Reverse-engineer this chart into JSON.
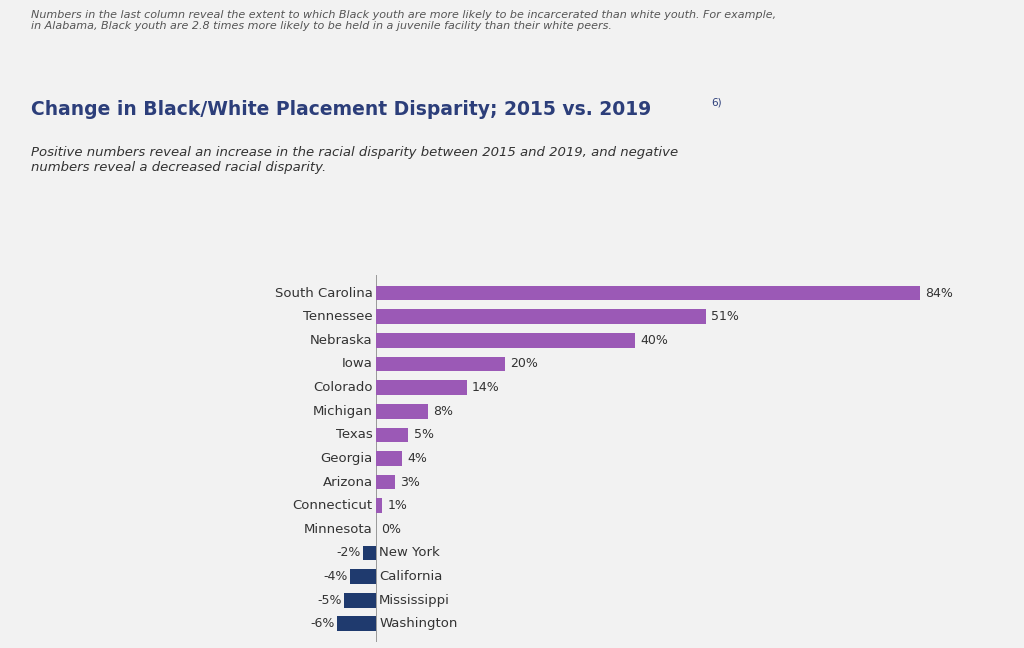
{
  "title": "Change in Black/White Placement Disparity; 2015 vs. 2019",
  "title_superscript": "6)",
  "subtitle": "Positive numbers reveal an increase in the racial disparity between 2015 and 2019, and negative\nnumbers reveal a decreased racial disparity.",
  "header_note": "Numbers in the last column reveal the extent to which Black youth are more likely to be incarcerated than white youth. For example,\nin Alabama, Black youth are 2.8 times more likely to be held in a juvenile facility than their white peers.",
  "categories": [
    "South Carolina",
    "Tennessee",
    "Nebraska",
    "Iowa",
    "Colorado",
    "Michigan",
    "Texas",
    "Georgia",
    "Arizona",
    "Connecticut",
    "Minnesota",
    "New York",
    "California",
    "Mississippi",
    "Washington"
  ],
  "values": [
    84,
    51,
    40,
    20,
    14,
    8,
    5,
    4,
    3,
    1,
    0,
    -2,
    -4,
    -5,
    -6
  ],
  "positive_color": "#9b59b6",
  "negative_color": "#1f3a6e",
  "background_color": "#f2f2f2",
  "text_color": "#333333",
  "title_color": "#2c3e7a",
  "note_color": "#555555",
  "bar_height": 0.62,
  "figsize": [
    10.24,
    6.48
  ],
  "dpi": 100
}
